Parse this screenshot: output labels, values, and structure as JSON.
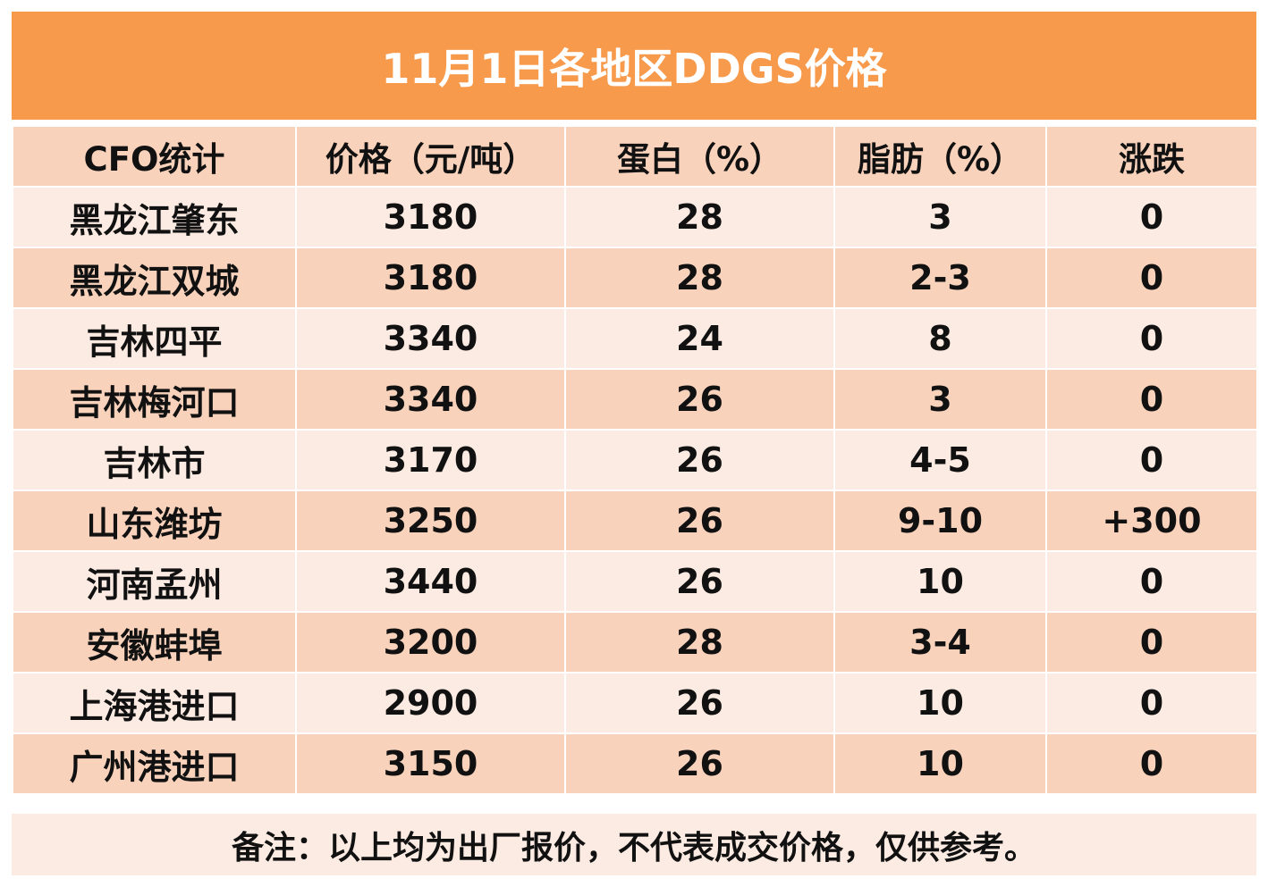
{
  "title": "11月1日各地区DDGS价格",
  "headers": [
    "CFO统计",
    "价格（元/吨）",
    "蛋白（%）",
    "脂肪（%）",
    "涨跌"
  ],
  "rows": [
    {
      "region": "黑龙江肇东",
      "price": "3180",
      "protein": "28",
      "fat": "3",
      "change": "0"
    },
    {
      "region": "黑龙江双城",
      "price": "3180",
      "protein": "28",
      "fat": "2-3",
      "change": "0"
    },
    {
      "region": "吉林四平",
      "price": "3340",
      "protein": "24",
      "fat": "8",
      "change": "0"
    },
    {
      "region": "吉林梅河口",
      "price": "3340",
      "protein": "26",
      "fat": "3",
      "change": "0"
    },
    {
      "region": "吉林市",
      "price": "3170",
      "protein": "26",
      "fat": "4-5",
      "change": "0"
    },
    {
      "region": "山东潍坊",
      "price": "3250",
      "protein": "26",
      "fat": "9-10",
      "change": "+300"
    },
    {
      "region": "河南孟州",
      "price": "3440",
      "protein": "26",
      "fat": "10",
      "change": "0"
    },
    {
      "region": "安徽蚌埠",
      "price": "3200",
      "protein": "28",
      "fat": "3-4",
      "change": "0"
    },
    {
      "region": "上海港进口",
      "price": "2900",
      "protein": "26",
      "fat": "10",
      "change": "0"
    },
    {
      "region": "广州港进口",
      "price": "3150",
      "protein": "26",
      "fat": "10",
      "change": "0"
    }
  ],
  "note": "备注：以上均为出厂报价，不代表成交价格，仅供参考。",
  "colors": {
    "title_bg": "#F79A4C",
    "band_dark": "#F9D2BC",
    "band_light": "#FCEBE2",
    "rise": "#E8140F"
  }
}
